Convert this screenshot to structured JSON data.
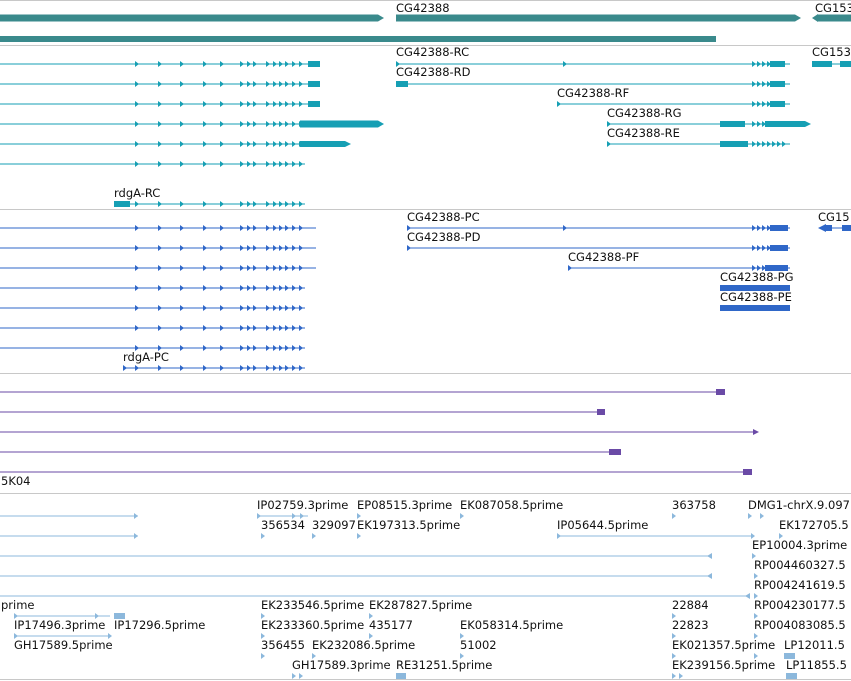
{
  "colors": {
    "gene": "#3a8a8c",
    "transcript": "#169fb4",
    "protein": "#2f67c8",
    "cdna": "#6a4aa6",
    "est": "#8cb8dc",
    "divider": "#c8c8c8"
  },
  "gene_track": {
    "labels": [
      "CG42388",
      "CG153"
    ]
  },
  "transcript_track": {
    "labels": [
      "CG42388-RC",
      "CG42388-RD",
      "CG42388-RF",
      "CG42388-RG",
      "CG42388-RE",
      "rdgA-RC",
      "CG153"
    ]
  },
  "protein_track": {
    "labels": [
      "CG42388-PC",
      "CG42388-PD",
      "CG42388-PF",
      "CG42388-PG",
      "CG42388-PE",
      "rdgA-PC",
      "CG15"
    ]
  },
  "cdna_track": {
    "labels": [
      "5K04"
    ]
  },
  "est_track": {
    "labels": [
      "IP02759.3prime",
      "EP08515.3prime",
      "EK087058.5prime",
      "363758",
      "DMG1-chrX.9.097",
      "356534",
      "329097",
      "EK197313.5prime",
      "IP05644.5prime",
      "EK172705.5",
      "EP10004.3prime",
      "RP004460327.5",
      "RP004241619.5",
      "prime",
      "EK233546.5prime",
      "EK287827.5prime",
      "22884",
      "RP004230177.5",
      "IP17496.3prime",
      "IP17296.5prime",
      "EK233360.5prime",
      "435177",
      "EK058314.5prime",
      "22823",
      "RP004083085.5",
      "GH17589.5prime",
      "356455",
      "EK232086.5prime",
      "51002",
      "EK021357.5prime",
      "LP12011.5",
      "GH17589.3prime",
      "RE31251.5prime",
      "EK239156.5prime",
      "LP11855.5"
    ]
  }
}
